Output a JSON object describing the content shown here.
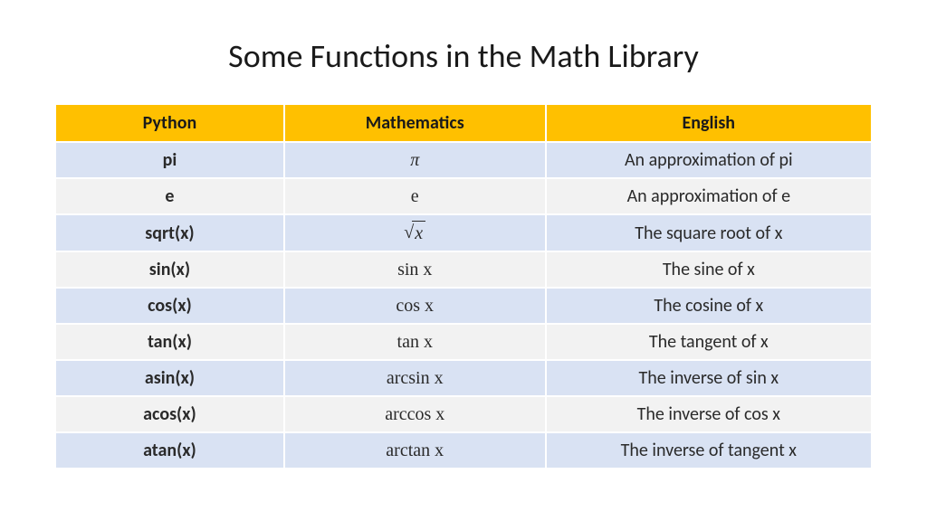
{
  "title": "Some Functions in the Math Library",
  "table": {
    "columns": [
      "Python",
      "Mathematics",
      "English"
    ],
    "col_widths": [
      "28%",
      "32%",
      "40%"
    ],
    "header_bg": "#ffc000",
    "row_odd_bg": "#d9e2f3",
    "row_even_bg": "#f2f2f2",
    "header_fontsize": 20,
    "header_fontweight": 700,
    "cell_fontsize": 20,
    "py_col_fontweight": 700,
    "text_color": "#2a2a2a",
    "rows": [
      {
        "python": "pi",
        "math": "π",
        "english": "An approximation of pi",
        "math_special": "pi"
      },
      {
        "python": "e",
        "math": "e",
        "english": "An approximation of e"
      },
      {
        "python": "sqrt(x)",
        "math": "√x",
        "english": "The square root of x",
        "math_special": "sqrt",
        "radicand": "x"
      },
      {
        "python": "sin(x)",
        "math": "sin x",
        "english": "The sine of x"
      },
      {
        "python": "cos(x)",
        "math": "cos x",
        "english": "The cosine of x"
      },
      {
        "python": "tan(x)",
        "math": "tan x",
        "english": "The tangent of x"
      },
      {
        "python": "asin(x)",
        "math": "arcsin x",
        "english": "The inverse of sin x"
      },
      {
        "python": "acos(x)",
        "math": "arccos x",
        "english": "The inverse of cos x"
      },
      {
        "python": "atan(x)",
        "math": "arctan x",
        "english": "The inverse of tangent x"
      }
    ]
  }
}
